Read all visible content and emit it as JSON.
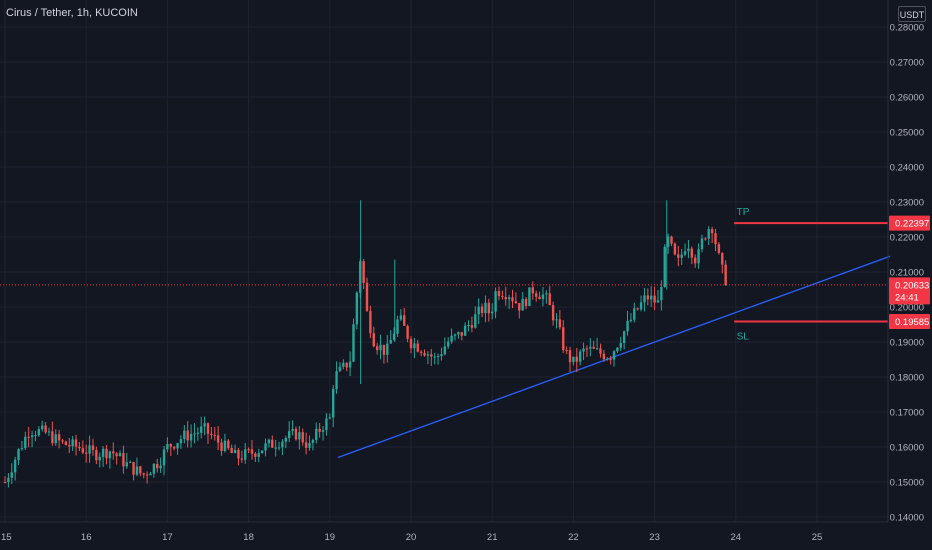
{
  "header": {
    "title": "Cirus / Tether, 1h, KUCOIN",
    "currency": "USDT"
  },
  "colors": {
    "background": "#131722",
    "grid": "#1f2330",
    "up": "#26a69a",
    "down": "#ef5350",
    "trendline": "#2962ff",
    "level": "#f23645"
  },
  "annotations": {
    "tp_label": "TP",
    "sl_label": "SL",
    "tp_price": "0.22397",
    "sl_price": "0.19585",
    "last_price": "0.20633",
    "countdown": "24:41"
  },
  "chart_data": {
    "type": "candlestick",
    "x_ticks": [
      "15",
      "16",
      "17",
      "18",
      "19",
      "20",
      "21",
      "22",
      "23",
      "24",
      "25"
    ],
    "y_ticks": [
      "0.14000",
      "0.15000",
      "0.16000",
      "0.17000",
      "0.18000",
      "0.19000",
      "0.20000",
      "0.21000",
      "0.22000",
      "0.23000",
      "0.24000",
      "0.25000",
      "0.26000",
      "0.27000",
      "0.28000"
    ],
    "ylim": [
      0.14,
      0.28
    ],
    "last_price": 0.20633,
    "levels": [
      {
        "name": "TP",
        "value": 0.22397
      },
      {
        "name": "SL",
        "value": 0.19585
      }
    ],
    "trendline": {
      "from": {
        "day": 19.1,
        "price": 0.157
      },
      "to": {
        "day": 25.9,
        "price": 0.2145
      }
    },
    "price_path": [
      [
        15.0,
        0.15
      ],
      [
        15.15,
        0.158
      ],
      [
        15.3,
        0.165
      ],
      [
        15.5,
        0.164
      ],
      [
        15.7,
        0.161
      ],
      [
        15.9,
        0.16
      ],
      [
        16.1,
        0.158
      ],
      [
        16.3,
        0.159
      ],
      [
        16.5,
        0.155
      ],
      [
        16.7,
        0.152
      ],
      [
        16.9,
        0.156
      ],
      [
        17.0,
        0.16
      ],
      [
        17.2,
        0.163
      ],
      [
        17.45,
        0.165
      ],
      [
        17.7,
        0.16
      ],
      [
        17.85,
        0.157
      ],
      [
        18.0,
        0.158
      ],
      [
        18.2,
        0.16
      ],
      [
        18.4,
        0.162
      ],
      [
        18.6,
        0.164
      ],
      [
        18.75,
        0.16
      ],
      [
        18.9,
        0.166
      ],
      [
        19.0,
        0.168
      ],
      [
        19.05,
        0.18
      ],
      [
        19.15,
        0.182
      ],
      [
        19.25,
        0.185
      ],
      [
        19.38,
        0.215
      ],
      [
        19.45,
        0.199
      ],
      [
        19.55,
        0.19
      ],
      [
        19.7,
        0.187
      ],
      [
        19.85,
        0.197
      ],
      [
        20.0,
        0.19
      ],
      [
        20.15,
        0.188
      ],
      [
        20.3,
        0.185
      ],
      [
        20.45,
        0.19
      ],
      [
        20.6,
        0.192
      ],
      [
        20.75,
        0.196
      ],
      [
        20.9,
        0.2
      ],
      [
        20.98,
        0.198
      ],
      [
        21.05,
        0.205
      ],
      [
        21.2,
        0.204
      ],
      [
        21.35,
        0.2
      ],
      [
        21.5,
        0.205
      ],
      [
        21.65,
        0.203
      ],
      [
        21.8,
        0.195
      ],
      [
        21.9,
        0.187
      ],
      [
        22.0,
        0.184
      ],
      [
        22.15,
        0.188
      ],
      [
        22.3,
        0.187
      ],
      [
        22.45,
        0.186
      ],
      [
        22.6,
        0.192
      ],
      [
        22.75,
        0.198
      ],
      [
        22.9,
        0.203
      ],
      [
        23.05,
        0.201
      ],
      [
        23.15,
        0.22
      ],
      [
        23.28,
        0.212
      ],
      [
        23.4,
        0.219
      ],
      [
        23.52,
        0.213
      ],
      [
        23.6,
        0.22
      ],
      [
        23.7,
        0.224
      ],
      [
        23.8,
        0.213
      ],
      [
        23.88,
        0.2063
      ]
    ]
  }
}
